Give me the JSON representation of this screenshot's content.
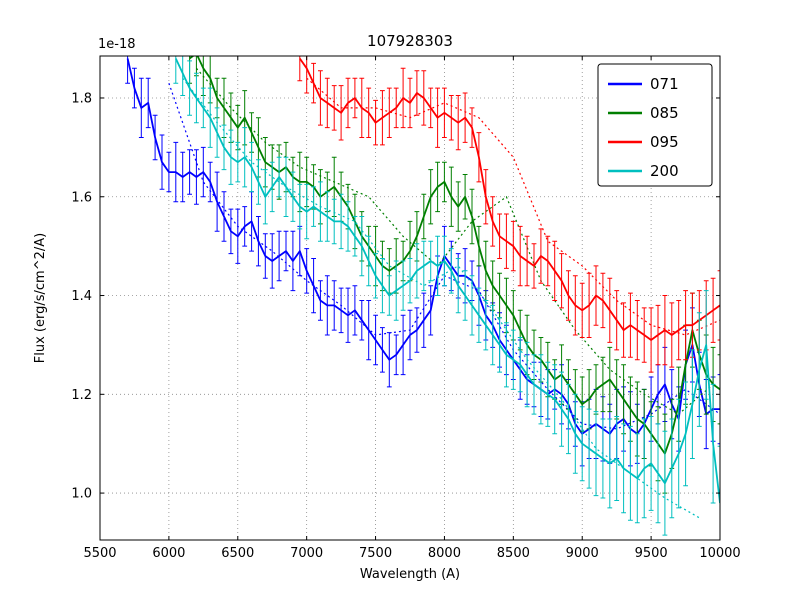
{
  "figure": {
    "title": "107928303",
    "xlabel": "Wavelength (A)",
    "ylabel": "Flux (erg/s/cm^2/A)",
    "offset_text": "1e-18",
    "background": "#ffffff",
    "grid_color": "#8a8a8a",
    "frame_color": "#000000"
  },
  "axes": {
    "xlim": [
      5500,
      10000
    ],
    "ylim": [
      0.905,
      1.885
    ],
    "xticks": [
      5500,
      6000,
      6500,
      7000,
      7500,
      8000,
      8500,
      9000,
      9500,
      10000
    ],
    "yticks": [
      1.0,
      1.2,
      1.4,
      1.6,
      1.8
    ],
    "ytick_labels": [
      "1.0",
      "1.2",
      "1.4",
      "1.6",
      "1.8"
    ],
    "grid": true
  },
  "legend": {
    "position": "upper right",
    "labels": [
      "071",
      "085",
      "095",
      "200"
    ]
  },
  "chart_data": {
    "type": "line",
    "title": "107928303",
    "xlabel": "Wavelength (A)",
    "ylabel": "Flux (erg/s/cm^2/A)",
    "y_scale": "1e-18",
    "series": [
      {
        "name": "071",
        "color": "#0000ff",
        "x_start": 5700,
        "x_step": 50,
        "y": [
          1.88,
          1.82,
          1.78,
          1.79,
          1.72,
          1.67,
          1.65,
          1.65,
          1.64,
          1.65,
          1.64,
          1.65,
          1.63,
          1.59,
          1.56,
          1.53,
          1.52,
          1.54,
          1.55,
          1.51,
          1.48,
          1.47,
          1.48,
          1.49,
          1.47,
          1.49,
          1.45,
          1.42,
          1.39,
          1.38,
          1.38,
          1.37,
          1.36,
          1.37,
          1.35,
          1.33,
          1.31,
          1.29,
          1.27,
          1.28,
          1.3,
          1.32,
          1.33,
          1.35,
          1.37,
          1.44,
          1.48,
          1.46,
          1.44,
          1.44,
          1.43,
          1.4,
          1.36,
          1.34,
          1.31,
          1.29,
          1.27,
          1.25,
          1.23,
          1.22,
          1.21,
          1.2,
          1.21,
          1.2,
          1.18,
          1.14,
          1.12,
          1.13,
          1.14,
          1.13,
          1.12,
          1.14,
          1.15,
          1.13,
          1.12,
          1.14,
          1.17,
          1.2,
          1.22,
          1.18,
          1.15,
          1.26,
          1.3,
          1.22,
          1.16,
          1.17,
          1.17
        ],
        "yerr": [
          0.05,
          0.04,
          0.06,
          0.05,
          0.045,
          0.055,
          0.04,
          0.06,
          0.05,
          0.045,
          0.055,
          0.05,
          0.04,
          0.06,
          0.05,
          0.045,
          0.055,
          0.04,
          0.06,
          0.05,
          0.045,
          0.055,
          0.05,
          0.04,
          0.06,
          0.05,
          0.045,
          0.055,
          0.04,
          0.06,
          0.05,
          0.045,
          0.055,
          0.05,
          0.04,
          0.06,
          0.05,
          0.045,
          0.055,
          0.04,
          0.06,
          0.05,
          0.045,
          0.055,
          0.05,
          0.04,
          0.06,
          0.05,
          0.045,
          0.055,
          0.04,
          0.06,
          0.05,
          0.045,
          0.055,
          0.05,
          0.04,
          0.06,
          0.05,
          0.045,
          0.055,
          0.05,
          0.04,
          0.06,
          0.05,
          0.045,
          0.065,
          0.06,
          0.07,
          0.065,
          0.06,
          0.07,
          0.065,
          0.075,
          0.06,
          0.07,
          0.065,
          0.06,
          0.075,
          0.07,
          0.065,
          0.07,
          0.075,
          0.065,
          0.07,
          0.065,
          0.07
        ],
        "fit": {
          "x_start": 6000,
          "x_step": 250,
          "y": [
            1.83,
            1.63,
            1.54,
            1.49,
            1.43,
            1.38,
            1.32,
            1.33,
            1.44,
            1.41,
            1.29,
            1.21,
            1.14,
            1.13,
            1.16,
            1.21,
            1.16
          ]
        }
      },
      {
        "name": "085",
        "color": "#007f00",
        "x_start": 6150,
        "x_step": 50,
        "y": [
          1.88,
          1.89,
          1.86,
          1.84,
          1.8,
          1.78,
          1.76,
          1.74,
          1.76,
          1.73,
          1.7,
          1.67,
          1.66,
          1.65,
          1.66,
          1.64,
          1.63,
          1.63,
          1.62,
          1.6,
          1.61,
          1.62,
          1.6,
          1.58,
          1.55,
          1.52,
          1.5,
          1.48,
          1.46,
          1.45,
          1.46,
          1.47,
          1.49,
          1.52,
          1.56,
          1.6,
          1.62,
          1.63,
          1.6,
          1.58,
          1.6,
          1.56,
          1.5,
          1.45,
          1.42,
          1.4,
          1.38,
          1.36,
          1.33,
          1.3,
          1.28,
          1.27,
          1.25,
          1.23,
          1.24,
          1.22,
          1.2,
          1.18,
          1.19,
          1.21,
          1.22,
          1.23,
          1.21,
          1.19,
          1.17,
          1.15,
          1.14,
          1.12,
          1.1,
          1.08,
          1.12,
          1.18,
          1.26,
          1.33,
          1.28,
          1.24,
          1.22,
          1.21
        ],
        "yerr": [
          0.05,
          0.045,
          0.055,
          0.05,
          0.04,
          0.06,
          0.05,
          0.045,
          0.055,
          0.04,
          0.06,
          0.05,
          0.045,
          0.055,
          0.05,
          0.04,
          0.06,
          0.05,
          0.045,
          0.055,
          0.04,
          0.06,
          0.05,
          0.045,
          0.055,
          0.05,
          0.04,
          0.06,
          0.05,
          0.045,
          0.055,
          0.04,
          0.06,
          0.05,
          0.045,
          0.055,
          0.05,
          0.04,
          0.06,
          0.05,
          0.045,
          0.055,
          0.04,
          0.06,
          0.05,
          0.045,
          0.055,
          0.05,
          0.04,
          0.06,
          0.05,
          0.045,
          0.055,
          0.04,
          0.06,
          0.05,
          0.05,
          0.055,
          0.06,
          0.05,
          0.055,
          0.065,
          0.06,
          0.07,
          0.065,
          0.075,
          0.07,
          0.065,
          0.075,
          0.08,
          0.07,
          0.075,
          0.08,
          0.075,
          0.07,
          0.08,
          0.075,
          0.07
        ],
        "fit": {
          "x_start": 6200,
          "x_step": 250,
          "y": [
            1.86,
            1.78,
            1.71,
            1.66,
            1.63,
            1.6,
            1.52,
            1.46,
            1.55,
            1.6,
            1.43,
            1.33,
            1.25,
            1.2,
            1.16,
            1.22
          ]
        }
      },
      {
        "name": "095",
        "color": "#ff0000",
        "x_start": 6950,
        "x_step": 50,
        "y": [
          1.88,
          1.86,
          1.83,
          1.8,
          1.79,
          1.78,
          1.77,
          1.79,
          1.8,
          1.78,
          1.77,
          1.75,
          1.76,
          1.77,
          1.78,
          1.8,
          1.79,
          1.81,
          1.8,
          1.78,
          1.76,
          1.77,
          1.76,
          1.75,
          1.76,
          1.74,
          1.68,
          1.6,
          1.55,
          1.52,
          1.51,
          1.5,
          1.48,
          1.47,
          1.46,
          1.48,
          1.47,
          1.45,
          1.43,
          1.4,
          1.38,
          1.37,
          1.38,
          1.4,
          1.39,
          1.37,
          1.35,
          1.33,
          1.34,
          1.33,
          1.32,
          1.31,
          1.32,
          1.33,
          1.32,
          1.33,
          1.34,
          1.34,
          1.35,
          1.36,
          1.37,
          1.38
        ],
        "yerr": [
          0.045,
          0.05,
          0.04,
          0.055,
          0.05,
          0.045,
          0.055,
          0.05,
          0.04,
          0.06,
          0.05,
          0.045,
          0.055,
          0.05,
          0.04,
          0.06,
          0.05,
          0.045,
          0.055,
          0.04,
          0.06,
          0.05,
          0.045,
          0.055,
          0.05,
          0.04,
          0.05,
          0.055,
          0.05,
          0.045,
          0.055,
          0.05,
          0.06,
          0.05,
          0.045,
          0.055,
          0.05,
          0.06,
          0.055,
          0.05,
          0.06,
          0.055,
          0.065,
          0.06,
          0.055,
          0.065,
          0.06,
          0.055,
          0.065,
          0.06,
          0.055,
          0.065,
          0.06,
          0.07,
          0.065,
          0.06,
          0.07,
          0.065,
          0.06,
          0.07,
          0.065,
          0.07
        ],
        "fit": {
          "x_start": 7000,
          "x_step": 250,
          "y": [
            1.84,
            1.78,
            1.78,
            1.76,
            1.79,
            1.76,
            1.68,
            1.51,
            1.46,
            1.39,
            1.34,
            1.32,
            1.35
          ]
        }
      },
      {
        "name": "200",
        "color": "#00bfbf",
        "x_start": 6050,
        "x_step": 50,
        "y": [
          1.88,
          1.85,
          1.82,
          1.8,
          1.78,
          1.76,
          1.73,
          1.7,
          1.68,
          1.67,
          1.68,
          1.66,
          1.63,
          1.6,
          1.62,
          1.64,
          1.62,
          1.6,
          1.58,
          1.57,
          1.58,
          1.57,
          1.56,
          1.55,
          1.55,
          1.54,
          1.52,
          1.5,
          1.47,
          1.44,
          1.42,
          1.4,
          1.41,
          1.42,
          1.43,
          1.45,
          1.46,
          1.47,
          1.46,
          1.47,
          1.45,
          1.42,
          1.4,
          1.38,
          1.36,
          1.34,
          1.32,
          1.3,
          1.28,
          1.27,
          1.26,
          1.24,
          1.22,
          1.21,
          1.2,
          1.19,
          1.17,
          1.15,
          1.12,
          1.1,
          1.09,
          1.08,
          1.07,
          1.06,
          1.07,
          1.05,
          1.04,
          1.03,
          1.05,
          1.06,
          1.04,
          1.02,
          1.05,
          1.08,
          1.12,
          1.18,
          1.25,
          1.3,
          1.1,
          0.98
        ],
        "yerr": [
          0.05,
          0.045,
          0.055,
          0.05,
          0.04,
          0.06,
          0.05,
          0.045,
          0.055,
          0.04,
          0.06,
          0.05,
          0.045,
          0.055,
          0.05,
          0.04,
          0.06,
          0.05,
          0.045,
          0.055,
          0.04,
          0.06,
          0.05,
          0.045,
          0.055,
          0.05,
          0.04,
          0.06,
          0.05,
          0.045,
          0.055,
          0.04,
          0.06,
          0.05,
          0.045,
          0.055,
          0.05,
          0.04,
          0.06,
          0.05,
          0.045,
          0.055,
          0.05,
          0.06,
          0.055,
          0.05,
          0.06,
          0.055,
          0.065,
          0.06,
          0.055,
          0.065,
          0.06,
          0.07,
          0.065,
          0.07,
          0.075,
          0.07,
          0.08,
          0.075,
          0.08,
          0.085,
          0.08,
          0.09,
          0.085,
          0.09,
          0.095,
          0.09,
          0.1,
          0.095,
          0.1,
          0.105,
          0.1,
          0.11,
          0.105,
          0.11,
          0.115,
          0.11,
          0.12,
          0.115
        ],
        "fit": {
          "x_start": 6100,
          "x_step": 250,
          "y": [
            1.84,
            1.75,
            1.67,
            1.62,
            1.58,
            1.55,
            1.46,
            1.42,
            1.46,
            1.37,
            1.27,
            1.19,
            1.09,
            1.04,
            0.99,
            0.95
          ]
        }
      }
    ]
  }
}
